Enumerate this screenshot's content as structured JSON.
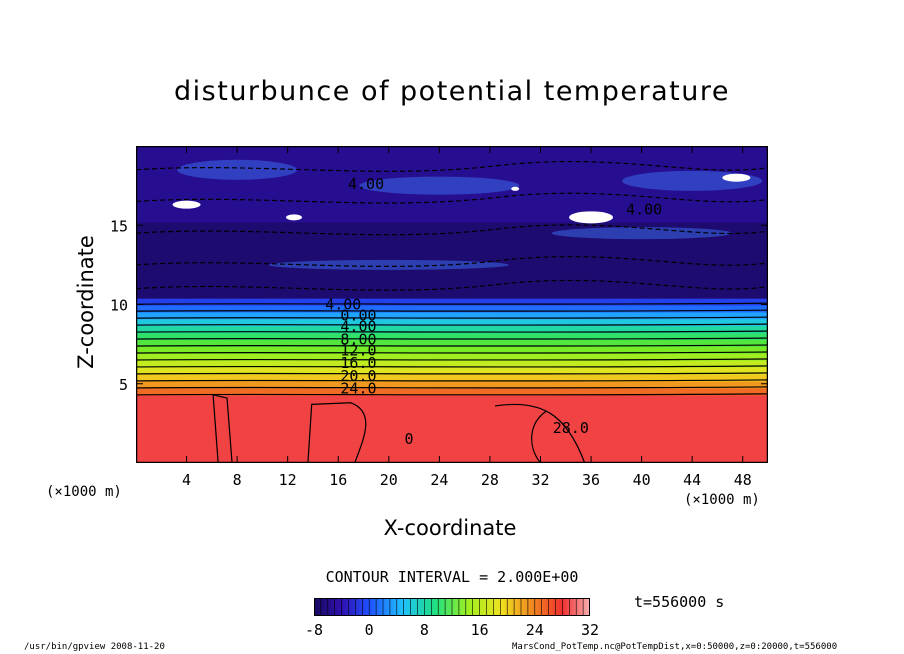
{
  "chart_data": {
    "type": "heatmap",
    "title": "disturbunce of potential temperature",
    "xlabel": "X-coordinate",
    "ylabel": "Z-coordinate",
    "x_unit_label": "(×1000 m)",
    "y_unit_label": "(×1000 m)",
    "xlim": [
      0,
      50
    ],
    "ylim": [
      0,
      20
    ],
    "x_ticks": [
      4,
      8,
      12,
      16,
      20,
      24,
      28,
      32,
      36,
      40,
      44,
      48
    ],
    "y_ticks": [
      5,
      10,
      15
    ],
    "contour_interval_text": "CONTOUR INTERVAL = 2.000E+00",
    "contour_labels": [
      {
        "x": 18.2,
        "z": 17.6,
        "text": "4.00"
      },
      {
        "x": 40.2,
        "z": 16.0,
        "text": "4.00"
      },
      {
        "x": 16.4,
        "z": 10.0,
        "text": "4.00"
      },
      {
        "x": 17.6,
        "z": 9.3,
        "text": "0.00"
      },
      {
        "x": 17.6,
        "z": 8.6,
        "text": "4.00"
      },
      {
        "x": 17.6,
        "z": 7.8,
        "text": "8.00"
      },
      {
        "x": 17.6,
        "z": 7.1,
        "text": "12.0"
      },
      {
        "x": 17.6,
        "z": 6.3,
        "text": "16.0"
      },
      {
        "x": 17.6,
        "z": 5.5,
        "text": "20.0"
      },
      {
        "x": 17.6,
        "z": 4.7,
        "text": "24.0"
      },
      {
        "x": 34.4,
        "z": 2.2,
        "text": "28.0"
      },
      {
        "x": 21.6,
        "z": 1.5,
        "text": "0"
      }
    ],
    "field_description": [
      {
        "z_range": [
          0,
          4.3
        ],
        "value_range": [
          28,
          30
        ]
      },
      {
        "z_range": [
          4.3,
          10.4
        ],
        "value_range": [
          -2,
          26
        ]
      },
      {
        "z_range": [
          10.4,
          20
        ],
        "value_range": [
          -8,
          -4
        ]
      }
    ],
    "colorbar": {
      "min": -8,
      "max": 32,
      "ticks": [
        -8,
        0,
        8,
        16,
        24,
        32
      ]
    },
    "annotation": "t=556000 s"
  },
  "footer": {
    "left": "/usr/bin/gpview  2008-11-20",
    "right": "MarsCond_PotTemp.nc@PotTempDist,x=0:50000,z=0:20000,t=556000"
  }
}
